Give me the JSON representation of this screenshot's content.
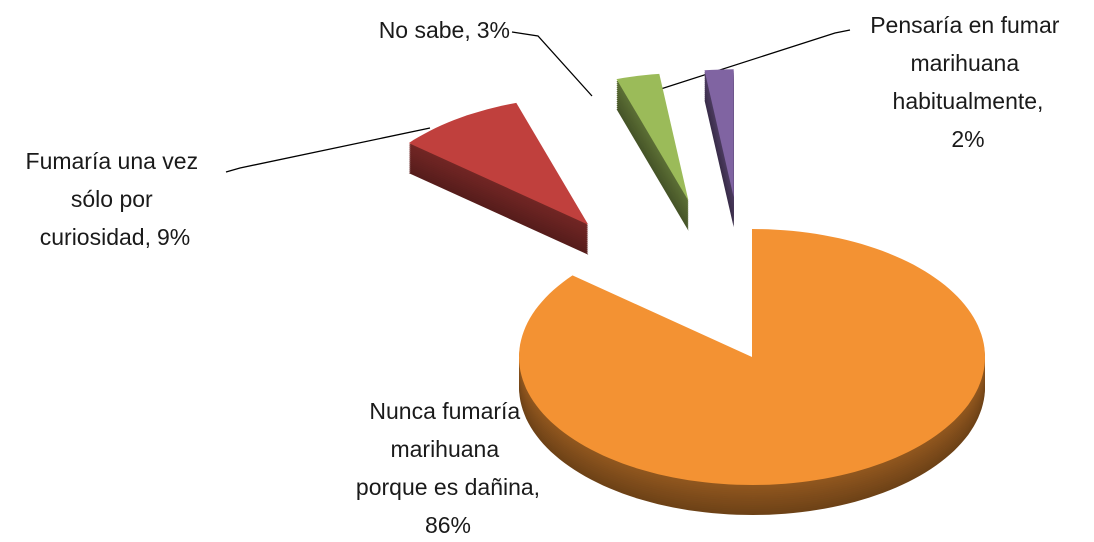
{
  "chart_data": {
    "type": "pie3d",
    "categories": [
      "Nunca fumaría marihuana porque es dañina,",
      "Fumaría una vez sólo por curiosidad,",
      "No sabe,",
      "Pensaría en fumar marihuana habitualmente,"
    ],
    "values": [
      86,
      9,
      3,
      2
    ],
    "value_labels": [
      "86%",
      "9%",
      "3%",
      "2%"
    ],
    "colors": [
      "#f39233",
      "#c0403d",
      "#9bbb59",
      "#8064a2"
    ]
  }
}
